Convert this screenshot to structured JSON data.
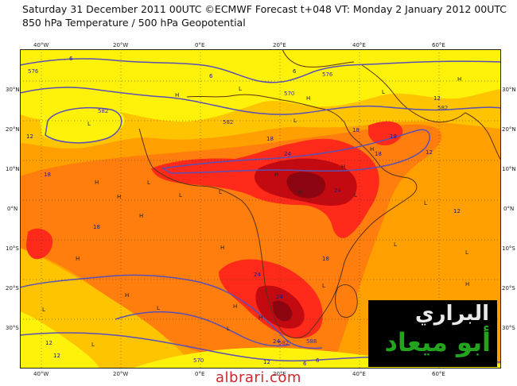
{
  "header": {
    "line1": "Saturday 31 December 2011 00UTC ©ECMWF Forecast t+048 VT: Monday 2 January 2012 00UTC",
    "line2": "850 hPa Temperature / 500 hPa Geopotential"
  },
  "map": {
    "colors": {
      "yellow": "#fff20a",
      "light_orange": "#ffc400",
      "orange": "#ffa000",
      "dark_orange": "#ff7e0d",
      "red": "#ff2a1a",
      "dark_red": "#c20a10",
      "deep_red": "#8e0512",
      "contour": "#5a4fb5",
      "coast": "#5b3216"
    },
    "lat_labels_left": [
      "30°N",
      "20°N",
      "10°N",
      "0°N",
      "10°S",
      "20°S",
      "30°S"
    ],
    "lat_labels_right": [
      "30°N",
      "20°N",
      "10°N",
      "0°N",
      "10°S",
      "20°S",
      "30°S"
    ],
    "lon_labels_top": [
      "40°W",
      "20°W",
      "0°E",
      "20°E",
      "40°E",
      "60°E"
    ],
    "lon_labels_bottom": [
      "40°W",
      "20°W",
      "0°E",
      "20°E",
      "40°E",
      "60°E"
    ],
    "geopotential_labels": [
      "582",
      "582",
      "576",
      "576",
      "582",
      "570",
      "570",
      "588",
      "582"
    ],
    "temperature_labels": [
      "6",
      "6",
      "6",
      "12",
      "12",
      "12",
      "12",
      "18",
      "18",
      "18",
      "18",
      "18",
      "18",
      "24",
      "24",
      "24",
      "24",
      "24",
      "18",
      "12",
      "12",
      "12",
      "6",
      "6"
    ],
    "pressure_marks": [
      "L",
      "L",
      "L",
      "L",
      "L",
      "L",
      "L",
      "L",
      "L",
      "L",
      "L",
      "L",
      "L",
      "L",
      "L",
      "L",
      "H",
      "H",
      "H",
      "H",
      "H",
      "H",
      "H",
      "H",
      "H",
      "H",
      "H",
      "H",
      "H",
      "H",
      "H",
      "H"
    ]
  },
  "logo": {
    "line1": "البراري",
    "line2": "أبو ميعاد"
  },
  "watermark": "albrari.com"
}
